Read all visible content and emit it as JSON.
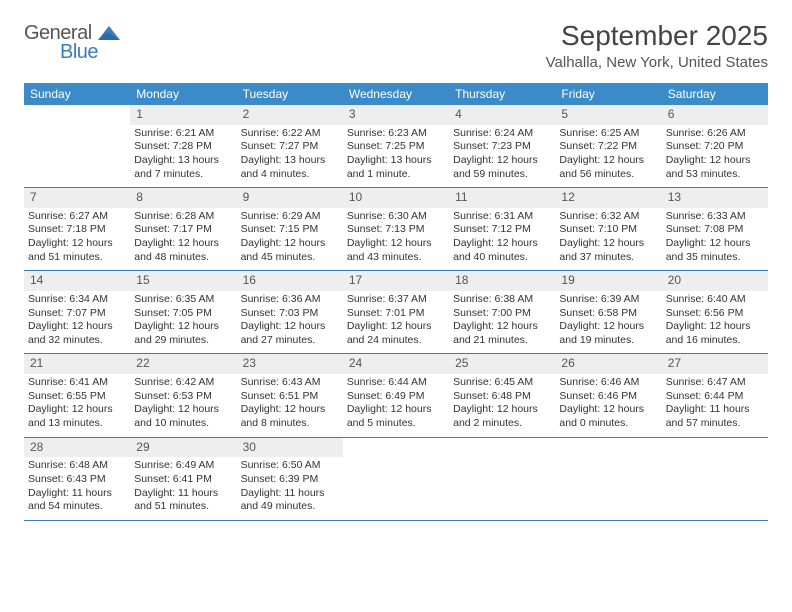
{
  "logo": {
    "top": "General",
    "bottom": "Blue"
  },
  "title": "September 2025",
  "location": "Valhalla, New York, United States",
  "colors": {
    "header_bg": "#3b8bc9",
    "header_text": "#ffffff",
    "daynum_bg": "#eeeeee",
    "border": "#3b7bbf",
    "title_color": "#444444",
    "logo_gray": "#555555",
    "logo_blue": "#3b7bbf"
  },
  "weekdays": [
    "Sunday",
    "Monday",
    "Tuesday",
    "Wednesday",
    "Thursday",
    "Friday",
    "Saturday"
  ],
  "weeks": [
    [
      null,
      {
        "n": "1",
        "sunrise": "Sunrise: 6:21 AM",
        "sunset": "Sunset: 7:28 PM",
        "daylight": "Daylight: 13 hours and 7 minutes."
      },
      {
        "n": "2",
        "sunrise": "Sunrise: 6:22 AM",
        "sunset": "Sunset: 7:27 PM",
        "daylight": "Daylight: 13 hours and 4 minutes."
      },
      {
        "n": "3",
        "sunrise": "Sunrise: 6:23 AM",
        "sunset": "Sunset: 7:25 PM",
        "daylight": "Daylight: 13 hours and 1 minute."
      },
      {
        "n": "4",
        "sunrise": "Sunrise: 6:24 AM",
        "sunset": "Sunset: 7:23 PM",
        "daylight": "Daylight: 12 hours and 59 minutes."
      },
      {
        "n": "5",
        "sunrise": "Sunrise: 6:25 AM",
        "sunset": "Sunset: 7:22 PM",
        "daylight": "Daylight: 12 hours and 56 minutes."
      },
      {
        "n": "6",
        "sunrise": "Sunrise: 6:26 AM",
        "sunset": "Sunset: 7:20 PM",
        "daylight": "Daylight: 12 hours and 53 minutes."
      }
    ],
    [
      {
        "n": "7",
        "sunrise": "Sunrise: 6:27 AM",
        "sunset": "Sunset: 7:18 PM",
        "daylight": "Daylight: 12 hours and 51 minutes."
      },
      {
        "n": "8",
        "sunrise": "Sunrise: 6:28 AM",
        "sunset": "Sunset: 7:17 PM",
        "daylight": "Daylight: 12 hours and 48 minutes."
      },
      {
        "n": "9",
        "sunrise": "Sunrise: 6:29 AM",
        "sunset": "Sunset: 7:15 PM",
        "daylight": "Daylight: 12 hours and 45 minutes."
      },
      {
        "n": "10",
        "sunrise": "Sunrise: 6:30 AM",
        "sunset": "Sunset: 7:13 PM",
        "daylight": "Daylight: 12 hours and 43 minutes."
      },
      {
        "n": "11",
        "sunrise": "Sunrise: 6:31 AM",
        "sunset": "Sunset: 7:12 PM",
        "daylight": "Daylight: 12 hours and 40 minutes."
      },
      {
        "n": "12",
        "sunrise": "Sunrise: 6:32 AM",
        "sunset": "Sunset: 7:10 PM",
        "daylight": "Daylight: 12 hours and 37 minutes."
      },
      {
        "n": "13",
        "sunrise": "Sunrise: 6:33 AM",
        "sunset": "Sunset: 7:08 PM",
        "daylight": "Daylight: 12 hours and 35 minutes."
      }
    ],
    [
      {
        "n": "14",
        "sunrise": "Sunrise: 6:34 AM",
        "sunset": "Sunset: 7:07 PM",
        "daylight": "Daylight: 12 hours and 32 minutes."
      },
      {
        "n": "15",
        "sunrise": "Sunrise: 6:35 AM",
        "sunset": "Sunset: 7:05 PM",
        "daylight": "Daylight: 12 hours and 29 minutes."
      },
      {
        "n": "16",
        "sunrise": "Sunrise: 6:36 AM",
        "sunset": "Sunset: 7:03 PM",
        "daylight": "Daylight: 12 hours and 27 minutes."
      },
      {
        "n": "17",
        "sunrise": "Sunrise: 6:37 AM",
        "sunset": "Sunset: 7:01 PM",
        "daylight": "Daylight: 12 hours and 24 minutes."
      },
      {
        "n": "18",
        "sunrise": "Sunrise: 6:38 AM",
        "sunset": "Sunset: 7:00 PM",
        "daylight": "Daylight: 12 hours and 21 minutes."
      },
      {
        "n": "19",
        "sunrise": "Sunrise: 6:39 AM",
        "sunset": "Sunset: 6:58 PM",
        "daylight": "Daylight: 12 hours and 19 minutes."
      },
      {
        "n": "20",
        "sunrise": "Sunrise: 6:40 AM",
        "sunset": "Sunset: 6:56 PM",
        "daylight": "Daylight: 12 hours and 16 minutes."
      }
    ],
    [
      {
        "n": "21",
        "sunrise": "Sunrise: 6:41 AM",
        "sunset": "Sunset: 6:55 PM",
        "daylight": "Daylight: 12 hours and 13 minutes."
      },
      {
        "n": "22",
        "sunrise": "Sunrise: 6:42 AM",
        "sunset": "Sunset: 6:53 PM",
        "daylight": "Daylight: 12 hours and 10 minutes."
      },
      {
        "n": "23",
        "sunrise": "Sunrise: 6:43 AM",
        "sunset": "Sunset: 6:51 PM",
        "daylight": "Daylight: 12 hours and 8 minutes."
      },
      {
        "n": "24",
        "sunrise": "Sunrise: 6:44 AM",
        "sunset": "Sunset: 6:49 PM",
        "daylight": "Daylight: 12 hours and 5 minutes."
      },
      {
        "n": "25",
        "sunrise": "Sunrise: 6:45 AM",
        "sunset": "Sunset: 6:48 PM",
        "daylight": "Daylight: 12 hours and 2 minutes."
      },
      {
        "n": "26",
        "sunrise": "Sunrise: 6:46 AM",
        "sunset": "Sunset: 6:46 PM",
        "daylight": "Daylight: 12 hours and 0 minutes."
      },
      {
        "n": "27",
        "sunrise": "Sunrise: 6:47 AM",
        "sunset": "Sunset: 6:44 PM",
        "daylight": "Daylight: 11 hours and 57 minutes."
      }
    ],
    [
      {
        "n": "28",
        "sunrise": "Sunrise: 6:48 AM",
        "sunset": "Sunset: 6:43 PM",
        "daylight": "Daylight: 11 hours and 54 minutes."
      },
      {
        "n": "29",
        "sunrise": "Sunrise: 6:49 AM",
        "sunset": "Sunset: 6:41 PM",
        "daylight": "Daylight: 11 hours and 51 minutes."
      },
      {
        "n": "30",
        "sunrise": "Sunrise: 6:50 AM",
        "sunset": "Sunset: 6:39 PM",
        "daylight": "Daylight: 11 hours and 49 minutes."
      },
      null,
      null,
      null,
      null
    ]
  ]
}
